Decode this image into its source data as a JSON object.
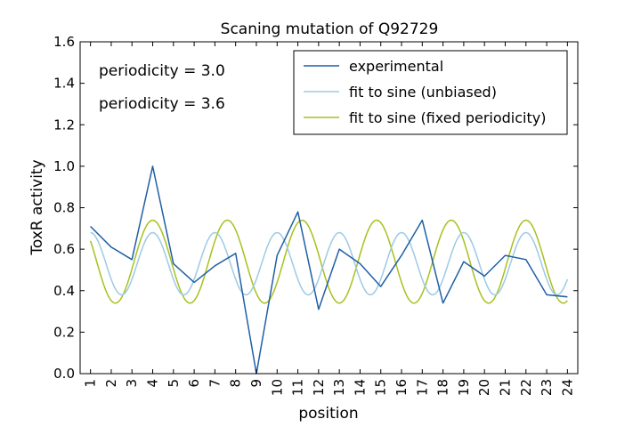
{
  "chart_data": {
    "type": "line",
    "title": "Scaning mutation of Q92729",
    "xlabel": "position",
    "ylabel": "ToxR activity",
    "xlim": [
      0.5,
      24.5
    ],
    "ylim": [
      0,
      1.6
    ],
    "x_ticks": [
      1,
      2,
      3,
      4,
      5,
      6,
      7,
      8,
      9,
      10,
      11,
      12,
      13,
      14,
      15,
      16,
      17,
      18,
      19,
      20,
      21,
      22,
      23,
      24
    ],
    "y_ticks": [
      0.0,
      0.2,
      0.4,
      0.6,
      0.8,
      1.0,
      1.2,
      1.4,
      1.6
    ],
    "y_tick_labels": [
      "0.0",
      "0.2",
      "0.4",
      "0.6",
      "0.8",
      "1.0",
      "1.2",
      "1.4",
      "1.6"
    ],
    "grid": false,
    "legend_position": "top-right",
    "series": [
      {
        "name": "experimental",
        "color": "#1f5fa6",
        "kind": "points",
        "x": [
          1,
          2,
          3,
          4,
          5,
          6,
          7,
          8,
          9,
          10,
          11,
          12,
          13,
          14,
          15,
          16,
          17,
          18,
          19,
          20,
          21,
          22,
          23,
          24
        ],
        "y": [
          0.71,
          0.61,
          0.55,
          1.0,
          0.53,
          0.44,
          0.52,
          0.58,
          0.0,
          0.57,
          0.78,
          0.31,
          0.6,
          0.53,
          0.42,
          0.57,
          0.74,
          0.34,
          0.54,
          0.47,
          0.57,
          0.55,
          0.38,
          0.37
        ]
      },
      {
        "name": "fit to sine (unbiased)",
        "color": "#9ccae3",
        "kind": "sine",
        "mean": 0.53,
        "amplitude": 0.15,
        "period": 3.0,
        "peak_x": 4.0,
        "x_range": [
          1,
          24
        ]
      },
      {
        "name": "fit to sine (fixed periodicity)",
        "color": "#a6c11e",
        "kind": "sine",
        "mean": 0.54,
        "amplitude": 0.2,
        "period": 3.6,
        "peak_x": 4.0,
        "x_range": [
          1,
          24
        ]
      }
    ],
    "annotations": [
      {
        "text": "periodicity = 3.0",
        "color": "#9ccae3"
      },
      {
        "text": "periodicity = 3.6",
        "color": "#a6c11e"
      }
    ]
  }
}
